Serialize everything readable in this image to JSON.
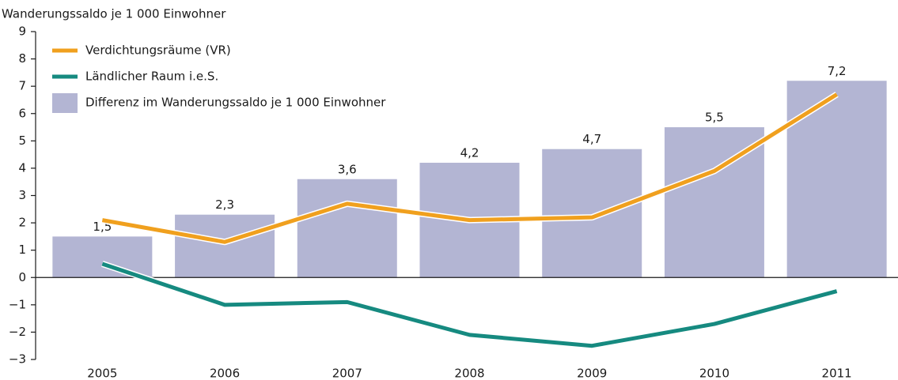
{
  "chart_data": {
    "type": "bar",
    "y_label": "Wanderungssaldo je 1 000 Einwohner",
    "categories": [
      "2005",
      "2006",
      "2007",
      "2008",
      "2009",
      "2010",
      "2011"
    ],
    "series": [
      {
        "name": "Verdichtungsräume (VR)",
        "type": "line",
        "color": "#f0a01e",
        "values": [
          2.1,
          1.3,
          2.7,
          2.1,
          2.2,
          3.9,
          6.7
        ]
      },
      {
        "name": "Ländlicher Raum i.e.S.",
        "type": "line",
        "color": "#168a80",
        "values": [
          0.5,
          -1.0,
          -0.9,
          -2.1,
          -2.5,
          -1.7,
          -0.5
        ]
      },
      {
        "name": "Differenz im Wanderungssaldo je 1 000 Einwohner",
        "type": "bar",
        "color": "#b3b5d3",
        "values": [
          1.5,
          2.3,
          3.6,
          4.2,
          4.7,
          5.5,
          7.2
        ],
        "value_labels": [
          "1,5",
          "2,3",
          "3,6",
          "4,2",
          "4,7",
          "5,5",
          "7,2"
        ]
      }
    ],
    "ylim": [
      -3,
      9
    ],
    "yticks": [
      {
        "value": -3,
        "label": "−3"
      },
      {
        "value": -2,
        "label": "−2"
      },
      {
        "value": -1,
        "label": "−1"
      },
      0,
      1,
      2,
      3,
      4,
      5,
      6,
      7,
      8,
      9
    ],
    "legend": "top-left"
  }
}
